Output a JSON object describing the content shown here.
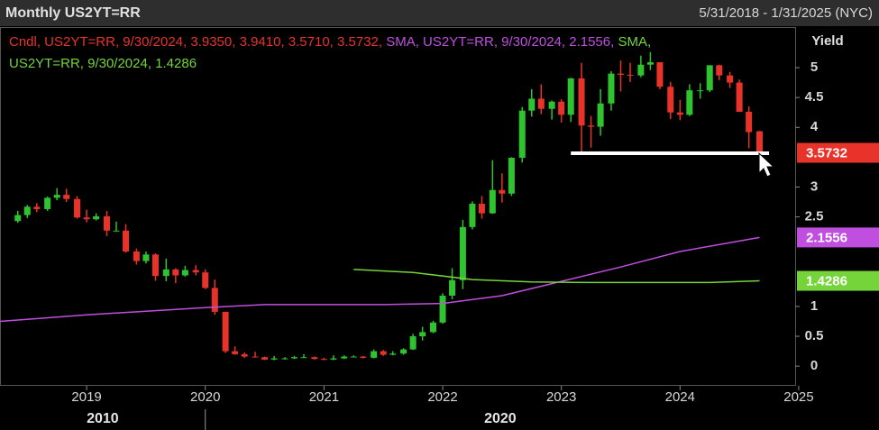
{
  "chart_data": {
    "type": "candlestick",
    "title": "Monthly US2YT=RR",
    "subtitle": "5/31/2018 - 1/31/2025 (NYC)",
    "y_label": "Yield",
    "xlim": [
      2018.27,
      2024.97
    ],
    "ylim": [
      -0.33,
      5.68
    ],
    "xticks": [
      2019,
      2020,
      2021,
      2022,
      2023,
      2024,
      2025
    ],
    "yticks": [
      0,
      0.5,
      1,
      2.5,
      3,
      4,
      4.5,
      5
    ],
    "grid": false,
    "x_groups": [
      {
        "label": "2010",
        "start": 2010
      },
      {
        "label": "2020",
        "start": 2020
      }
    ],
    "series": [
      {
        "type": "candlestick",
        "name": "Cndl, US2YT=RR, 9/30/2024, 3.9350, 3.9410, 3.5710, 3.5732,",
        "color": "#e8332a",
        "up_color": "#2fc42f",
        "down_color": "#e8332a",
        "x": [
          2018.42,
          2018.5,
          2018.58,
          2018.67,
          2018.75,
          2018.83,
          2018.92,
          2019,
          2019.08,
          2019.17,
          2019.25,
          2019.33,
          2019.42,
          2019.5,
          2019.58,
          2019.67,
          2019.75,
          2019.83,
          2019.92,
          2020,
          2020.08,
          2020.17,
          2020.25,
          2020.33,
          2020.42,
          2020.5,
          2020.58,
          2020.67,
          2020.75,
          2020.83,
          2020.92,
          2021,
          2021.08,
          2021.17,
          2021.25,
          2021.33,
          2021.42,
          2021.5,
          2021.58,
          2021.67,
          2021.75,
          2021.83,
          2021.92,
          2022,
          2022.08,
          2022.17,
          2022.25,
          2022.33,
          2022.42,
          2022.5,
          2022.58,
          2022.67,
          2022.75,
          2022.83,
          2022.92,
          2023,
          2023.08,
          2023.17,
          2023.25,
          2023.33,
          2023.42,
          2023.5,
          2023.58,
          2023.67,
          2023.75,
          2023.83,
          2023.92,
          2024,
          2024.08,
          2024.17,
          2024.25,
          2024.33,
          2024.42,
          2024.5,
          2024.58,
          2024.67
        ],
        "open": [
          2.43,
          2.53,
          2.67,
          2.63,
          2.82,
          2.87,
          2.8,
          2.49,
          2.46,
          2.51,
          2.27,
          2.27,
          1.92,
          1.76,
          1.87,
          1.51,
          1.62,
          1.52,
          1.61,
          1.57,
          1.31,
          0.91,
          0.25,
          0.2,
          0.16,
          0.15,
          0.11,
          0.13,
          0.13,
          0.15,
          0.15,
          0.12,
          0.11,
          0.13,
          0.16,
          0.16,
          0.14,
          0.25,
          0.19,
          0.21,
          0.28,
          0.5,
          0.57,
          0.73,
          1.18,
          1.44,
          2.33,
          2.72,
          2.56,
          2.95,
          2.89,
          3.49,
          4.28,
          4.48,
          4.31,
          4.43,
          4.21,
          4.82,
          4.03,
          4.01,
          4.4,
          4.9,
          4.88,
          4.87,
          5.05,
          5.09,
          4.68,
          4.25,
          4.21,
          4.62,
          4.62,
          5.04,
          4.87,
          4.75,
          4.26,
          3.935
        ],
        "high": [
          2.6,
          2.7,
          2.73,
          2.84,
          2.98,
          2.97,
          2.85,
          2.62,
          2.56,
          2.6,
          2.42,
          2.38,
          1.97,
          1.92,
          1.89,
          1.8,
          1.64,
          1.68,
          1.69,
          1.62,
          1.45,
          0.91,
          0.33,
          0.23,
          0.24,
          0.16,
          0.17,
          0.15,
          0.17,
          0.2,
          0.16,
          0.14,
          0.18,
          0.18,
          0.18,
          0.17,
          0.28,
          0.27,
          0.25,
          0.3,
          0.54,
          0.66,
          0.76,
          1.22,
          1.64,
          2.45,
          2.76,
          2.85,
          3.45,
          3.23,
          3.5,
          4.34,
          4.64,
          4.72,
          4.45,
          4.47,
          4.83,
          5.08,
          4.19,
          4.64,
          4.94,
          5.12,
          5.08,
          5.2,
          5.26,
          5.09,
          4.76,
          4.46,
          4.72,
          4.74,
          5.04,
          5.05,
          4.93,
          4.8,
          4.35,
          3.941
        ],
        "low": [
          2.4,
          2.48,
          2.58,
          2.6,
          2.78,
          2.75,
          2.47,
          2.41,
          2.44,
          2.18,
          2.26,
          1.9,
          1.7,
          1.72,
          1.43,
          1.42,
          1.39,
          1.5,
          1.52,
          1.29,
          0.86,
          0.22,
          0.19,
          0.14,
          0.15,
          0.1,
          0.1,
          0.11,
          0.12,
          0.14,
          0.11,
          0.1,
          0.1,
          0.12,
          0.15,
          0.13,
          0.13,
          0.17,
          0.18,
          0.19,
          0.27,
          0.43,
          0.55,
          0.71,
          1.12,
          1.29,
          2.29,
          2.47,
          2.55,
          2.74,
          2.85,
          3.41,
          4.18,
          4.22,
          4.13,
          4.08,
          4.09,
          3.55,
          3.66,
          3.86,
          4.28,
          4.6,
          4.76,
          4.84,
          4.96,
          4.64,
          4.14,
          4.12,
          4.19,
          4.48,
          4.59,
          4.79,
          4.66,
          4.26,
          3.65,
          3.571
        ],
        "close": [
          2.53,
          2.67,
          2.63,
          2.82,
          2.87,
          2.8,
          2.49,
          2.46,
          2.51,
          2.27,
          2.27,
          1.92,
          1.76,
          1.87,
          1.51,
          1.62,
          1.52,
          1.61,
          1.57,
          1.31,
          0.91,
          0.25,
          0.2,
          0.16,
          0.15,
          0.11,
          0.13,
          0.13,
          0.15,
          0.15,
          0.12,
          0.11,
          0.13,
          0.16,
          0.16,
          0.14,
          0.25,
          0.19,
          0.21,
          0.28,
          0.5,
          0.57,
          0.73,
          1.18,
          1.44,
          2.33,
          2.72,
          2.56,
          2.95,
          2.89,
          3.49,
          4.28,
          4.48,
          4.31,
          4.43,
          4.21,
          4.82,
          4.03,
          4.01,
          4.4,
          4.9,
          4.88,
          4.87,
          5.05,
          5.09,
          4.68,
          4.25,
          4.21,
          4.62,
          4.62,
          5.04,
          4.87,
          4.75,
          4.26,
          3.92,
          3.5732
        ]
      },
      {
        "type": "line",
        "name": "SMA, US2YT=RR, 9/30/2024, 2.1556,",
        "color": "#c04fe0",
        "x": [
          2018.27,
          2019,
          2020,
          2020.5,
          2021.5,
          2022,
          2022.5,
          2023,
          2023.5,
          2024,
          2024.67
        ],
        "values": [
          0.75,
          0.86,
          0.98,
          1.03,
          1.03,
          1.05,
          1.18,
          1.42,
          1.66,
          1.92,
          2.1556
        ]
      },
      {
        "type": "line",
        "name": "SMA, US2YT=RR, 9/30/2024, 1.4286",
        "color": "#74d43a",
        "x": [
          2021.25,
          2021.75,
          2022.25,
          2022.75,
          2023.25,
          2023.75,
          2024.25,
          2024.67
        ],
        "values": [
          1.62,
          1.57,
          1.45,
          1.41,
          1.4,
          1.4,
          1.4,
          1.4286
        ]
      }
    ],
    "annotations": [
      {
        "type": "hline",
        "value": 3.565,
        "x": [
          2023.08,
          2024.75
        ],
        "color": "#ffffff"
      }
    ]
  }
}
